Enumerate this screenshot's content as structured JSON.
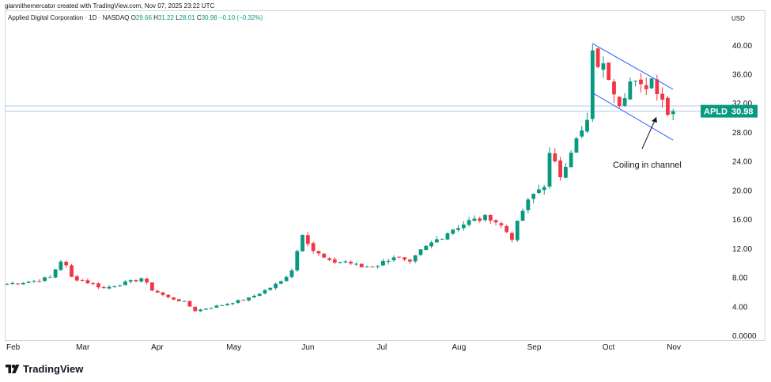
{
  "header": {
    "credit": "giannithemercator created with TradingView.com, Nov 07, 2025 23:22 UTC"
  },
  "legend": {
    "symbol": "Applied Digital Corporation · 1D · NASDAQ",
    "o_label": "O",
    "o_value": "29.66",
    "h_label": "H",
    "h_value": "31.22",
    "l_label": "L",
    "l_value": "28.01",
    "c_label": "C",
    "c_value": "30.98",
    "change": "−0.10 (−0.32%)"
  },
  "currency": "USD",
  "brand": {
    "name": "TradingView",
    "logo_icon": "tradingview-logo-icon"
  },
  "colors": {
    "up": "#089981",
    "down": "#f23645",
    "channel": "#2962ff",
    "label_bg": "#089981"
  },
  "chart_data": {
    "type": "candlestick",
    "ticker": "APLD",
    "last_price": 30.98,
    "last_price_label": "30.98",
    "ylim": [
      0,
      42
    ],
    "y_ticks": [
      0,
      4,
      8,
      12,
      16,
      20,
      24,
      28,
      32,
      36,
      40
    ],
    "y_tick_labels": [
      "0.0000",
      "4.00",
      "8.00",
      "12.00",
      "16.00",
      "20.00",
      "24.00",
      "28.00",
      "32.00",
      "36.00",
      "40.00"
    ],
    "x_labels": [
      "Feb",
      "Mar",
      "Apr",
      "May",
      "Jun",
      "Jul",
      "Aug",
      "Sep",
      "Oct",
      "Nov"
    ],
    "annotation": "Coiling in channel",
    "horizontal_lines": [
      31.7,
      30.98
    ],
    "channel": {
      "upper": [
        {
          "day": 109,
          "price": 40.3
        },
        {
          "day": 124,
          "price": 34.0
        }
      ],
      "lower": [
        {
          "day": 109,
          "price": 33.5
        },
        {
          "day": 124,
          "price": 27.0
        }
      ]
    },
    "ohlc_anchor_closes": [
      [
        0,
        7.2
      ],
      [
        5,
        7.6
      ],
      [
        8,
        8.1
      ],
      [
        10,
        10.4
      ],
      [
        11,
        9.6
      ],
      [
        12,
        8.1
      ],
      [
        15,
        7.4
      ],
      [
        18,
        6.6
      ],
      [
        20,
        7.0
      ],
      [
        23,
        7.5
      ],
      [
        25,
        8.0
      ],
      [
        27,
        6.4
      ],
      [
        30,
        5.3
      ],
      [
        33,
        4.7
      ],
      [
        35,
        3.5
      ],
      [
        40,
        4.3
      ],
      [
        45,
        5.2
      ],
      [
        48,
        6.3
      ],
      [
        51,
        7.5
      ],
      [
        53,
        9.2
      ],
      [
        55,
        14.3
      ],
      [
        57,
        11.8
      ],
      [
        60,
        10.2
      ],
      [
        63,
        10.3
      ],
      [
        66,
        9.5
      ],
      [
        69,
        9.8
      ],
      [
        72,
        11.0
      ],
      [
        75,
        10.0
      ],
      [
        77,
        11.7
      ],
      [
        79,
        12.8
      ],
      [
        83,
        14.8
      ],
      [
        86,
        15.8
      ],
      [
        90,
        16.4
      ],
      [
        92,
        15.2
      ],
      [
        94,
        13.6
      ],
      [
        96,
        17.3
      ],
      [
        98,
        19.5
      ],
      [
        100,
        21.0
      ],
      [
        101,
        24.8
      ],
      [
        103,
        22.2
      ],
      [
        105,
        25.8
      ],
      [
        107,
        28.0
      ],
      [
        108,
        29.5
      ],
      [
        109,
        38.5
      ],
      [
        112,
        36.0
      ],
      [
        114,
        32.5
      ],
      [
        116,
        35.0
      ],
      [
        118,
        34.0
      ],
      [
        120,
        35.5
      ],
      [
        122,
        33.0
      ],
      [
        123,
        30.5
      ],
      [
        124,
        30.98
      ]
    ]
  }
}
